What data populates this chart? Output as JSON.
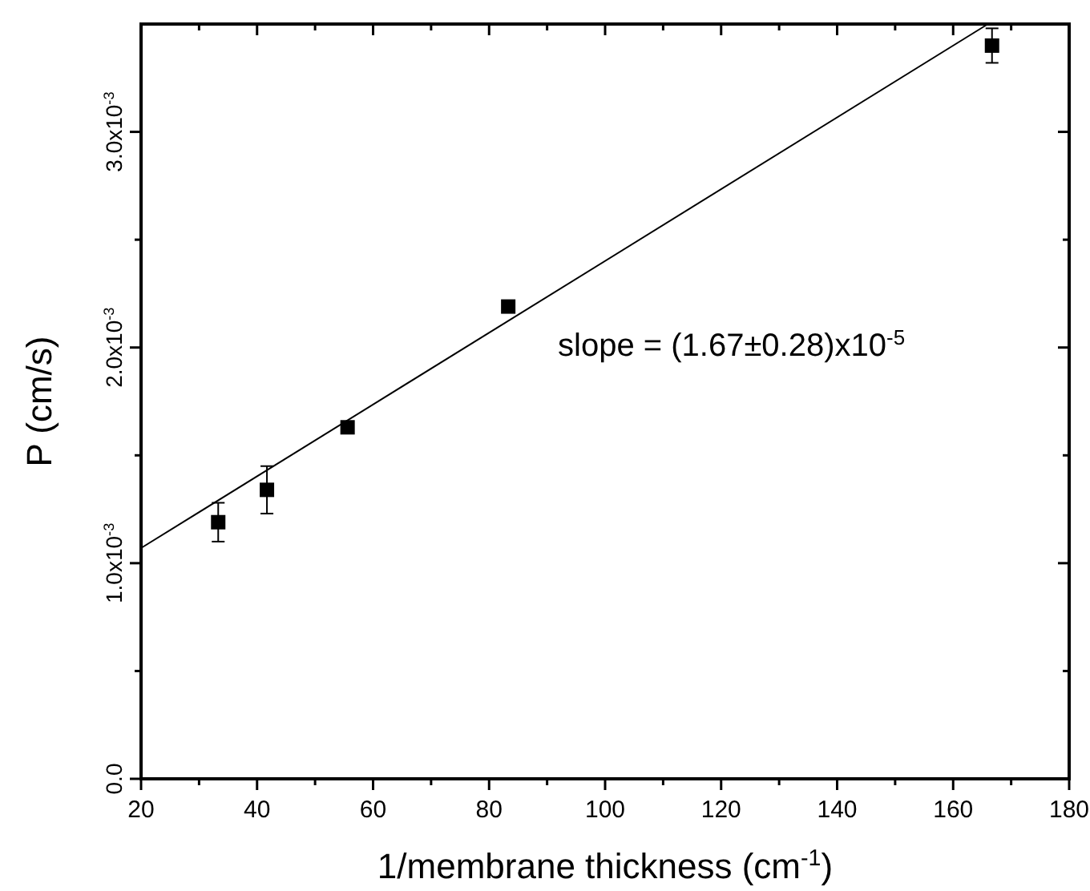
{
  "chart_data": {
    "type": "scatter",
    "xlabel": "1/membrane thickness (cm$^{-1}$)",
    "ylabel": "P (cm/s)",
    "xlim": [
      20,
      180
    ],
    "ylim": [
      0,
      0.0035
    ],
    "xticks": [
      20,
      {
        "value": 30,
        "label": null
      },
      40,
      {
        "value": 50,
        "label": null
      },
      60,
      {
        "value": 70,
        "label": null
      },
      80,
      {
        "value": 90,
        "label": null
      },
      100,
      {
        "value": 110,
        "label": null
      },
      120,
      {
        "value": 130,
        "label": null
      },
      140,
      {
        "value": 150,
        "label": null
      },
      160,
      {
        "value": 170,
        "label": null
      },
      180
    ],
    "yticks": [
      {
        "value": 0,
        "label": "0.0"
      },
      {
        "value": 0.0005,
        "label": null
      },
      {
        "value": 0.001,
        "label": "1.0x10$^{-3}$"
      },
      {
        "value": 0.0015,
        "label": null
      },
      {
        "value": 0.002,
        "label": "2.0x10$^{-3}$"
      },
      {
        "value": 0.0025,
        "label": null
      },
      {
        "value": 0.003,
        "label": "3.0x10$^{-3}$"
      }
    ],
    "grid": false,
    "series": [
      {
        "color": "#000000",
        "marker": "square",
        "x": [
          33.3,
          41.7,
          55.6,
          83.3,
          166.7
        ],
        "values": [
          0.00119,
          0.00134,
          0.00163,
          0.00219,
          0.0034
        ],
        "errors": [
          9e-05,
          0.00011,
          2e-05,
          1e-05,
          8e-05
        ]
      },
      {
        "type": "line",
        "color": "#000000",
        "marker": "none",
        "line_style": "solid",
        "x": [
          20,
          166
        ],
        "values": [
          0.00107,
          0.0035
        ]
      }
    ],
    "annotations": [
      "slope = (1.67±0.28)x10$^{-5}$"
    ]
  }
}
